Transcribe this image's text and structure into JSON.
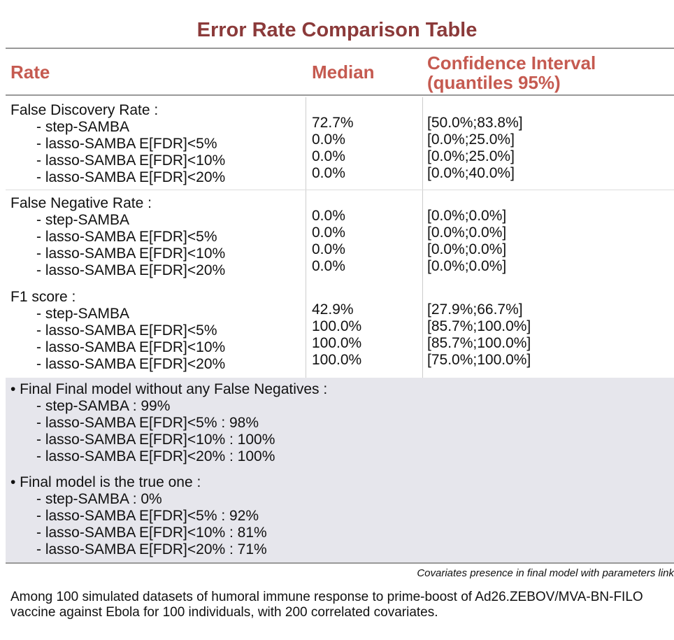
{
  "title": "Error Rate Comparison Table",
  "header": [
    "Rate",
    "Median",
    "Confidence Interval (quantiles 95%)"
  ],
  "groups": [
    {
      "title": "False Discovery Rate :",
      "rows": [
        {
          "label": "- step-SAMBA",
          "median": "72.7%",
          "ci": "[50.0%;83.8%]"
        },
        {
          "label": "- lasso-SAMBA E[FDR]<5%",
          "median": "0.0%",
          "ci": "[0.0%;25.0%]"
        },
        {
          "label": "- lasso-SAMBA E[FDR]<10%",
          "median": "0.0%",
          "ci": "[0.0%;25.0%]"
        },
        {
          "label": "- lasso-SAMBA E[FDR]<20%",
          "median": "0.0%",
          "ci": "[0.0%;40.0%]"
        }
      ]
    },
    {
      "title": "False Negative Rate :",
      "rows": [
        {
          "label": "- step-SAMBA",
          "median": "0.0%",
          "ci": "[0.0%;0.0%]"
        },
        {
          "label": "- lasso-SAMBA E[FDR]<5%",
          "median": "0.0%",
          "ci": "[0.0%;0.0%]"
        },
        {
          "label": "- lasso-SAMBA E[FDR]<10%",
          "median": "0.0%",
          "ci": "[0.0%;0.0%]"
        },
        {
          "label": "- lasso-SAMBA E[FDR]<20%",
          "median": "0.0%",
          "ci": "[0.0%;0.0%]"
        }
      ]
    },
    {
      "title": "F1 score :",
      "rows": [
        {
          "label": "- step-SAMBA",
          "median": "42.9%",
          "ci": "[27.9%;66.7%]"
        },
        {
          "label": "- lasso-SAMBA E[FDR]<5%",
          "median": "100.0%",
          "ci": "[85.7%;100.0%]"
        },
        {
          "label": "- lasso-SAMBA E[FDR]<10%",
          "median": "100.0%",
          "ci": "[85.7%;100.0%]"
        },
        {
          "label": "- lasso-SAMBA E[FDR]<20%",
          "median": "100.0%",
          "ci": "[75.0%;100.0%]"
        }
      ]
    }
  ],
  "summary": [
    {
      "title": "• Final Final model without any False Negatives :",
      "items": [
        "- step-SAMBA : 99%",
        "- lasso-SAMBA E[FDR]<5% : 98%",
        "- lasso-SAMBA E[FDR]<10% : 100%",
        "- lasso-SAMBA E[FDR]<20% : 100%"
      ]
    },
    {
      "title": "• Final model is the true one :",
      "items": [
        "- step-SAMBA : 0%",
        "- lasso-SAMBA E[FDR]<5% : 92%",
        "- lasso-SAMBA E[FDR]<10% : 81%",
        "- lasso-SAMBA E[FDR]<20% : 71%"
      ]
    }
  ],
  "footnote": "Covariates presence in final model with parameters link",
  "description": "Among 100 simulated datasets of humoral immune response to prime-boost of Ad26.ZEBOV/MVA-BN-FILO vaccine against Ebola for 100 individuals, with 200 correlated covariates."
}
